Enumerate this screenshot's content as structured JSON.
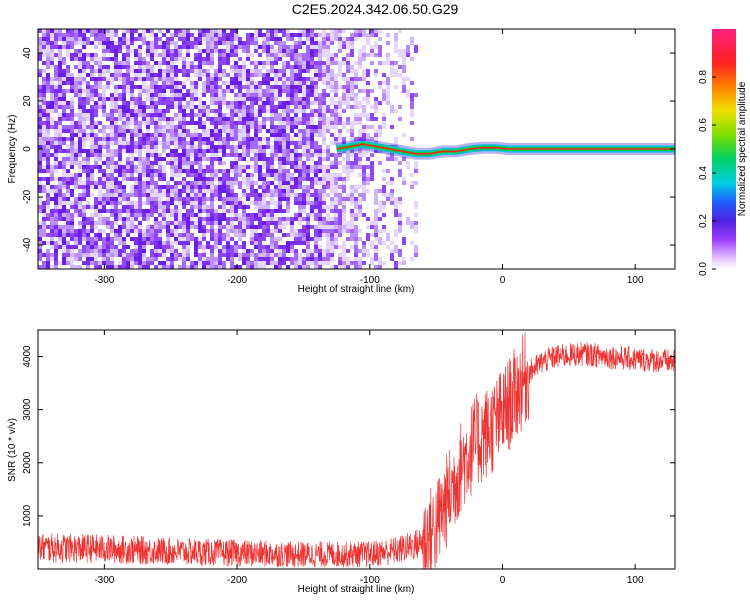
{
  "title": "C2E5.2024.342.06.50.G29",
  "chart_data": [
    {
      "type": "heatmap",
      "xlabel": "Height of straight line (km)",
      "ylabel": "Frequency (Hz)",
      "xlim": [
        -350,
        130
      ],
      "ylim": [
        -50,
        50
      ],
      "xticks": [
        -300,
        -200,
        -100,
        0,
        100
      ],
      "xtick_labels": [
        "-300",
        "-200",
        "-100",
        "0",
        "100"
      ],
      "yticks": [
        -40,
        -20,
        0,
        20,
        40
      ],
      "ytick_labels": [
        "-40",
        "-20",
        "0",
        "20",
        "40"
      ],
      "colorbar": {
        "label": "Normalized spectral amplitude",
        "range": [
          0,
          1
        ],
        "ticks": [
          0,
          0.2,
          0.4,
          0.6,
          0.8
        ],
        "tick_labels": [
          "0.0",
          "0.2",
          "0.4",
          "0.6",
          "0.8"
        ]
      },
      "noise_region_x": [
        -350,
        -65
      ],
      "signal_trace": {
        "x": [
          -125,
          -115,
          -105,
          -95,
          -85,
          -75,
          -65,
          -55,
          -45,
          -35,
          -25,
          -15,
          -5,
          5,
          50,
          130
        ],
        "y": [
          0,
          1,
          2,
          1,
          0,
          -1,
          -2,
          -2,
          -1,
          -1,
          0,
          0.5,
          0.5,
          0,
          0,
          0
        ]
      }
    },
    {
      "type": "line",
      "xlabel": "Height of straight line (km)",
      "ylabel": "SNR (10 * v/v)",
      "xlim": [
        -350,
        130
      ],
      "ylim": [
        0,
        4500
      ],
      "xticks": [
        -300,
        -200,
        -100,
        0,
        100
      ],
      "xtick_labels": [
        "-300",
        "-200",
        "-100",
        "0",
        "100"
      ],
      "yticks": [
        1000,
        2000,
        3000,
        4000
      ],
      "ytick_labels": [
        "1000",
        "2000",
        "3000",
        "4000"
      ],
      "series": [
        {
          "color": "#ee3333",
          "x": [
            -350,
            -300,
            -250,
            -200,
            -150,
            -100,
            -80,
            -60,
            -50,
            -40,
            -30,
            -20,
            -10,
            0,
            10,
            20,
            30,
            40,
            60,
            80,
            100,
            130
          ],
          "y": [
            400,
            380,
            330,
            300,
            270,
            280,
            350,
            500,
            800,
            1400,
            2000,
            2400,
            2600,
            2900,
            3300,
            3700,
            3900,
            4000,
            4050,
            4000,
            3950,
            3900
          ]
        }
      ]
    }
  ]
}
